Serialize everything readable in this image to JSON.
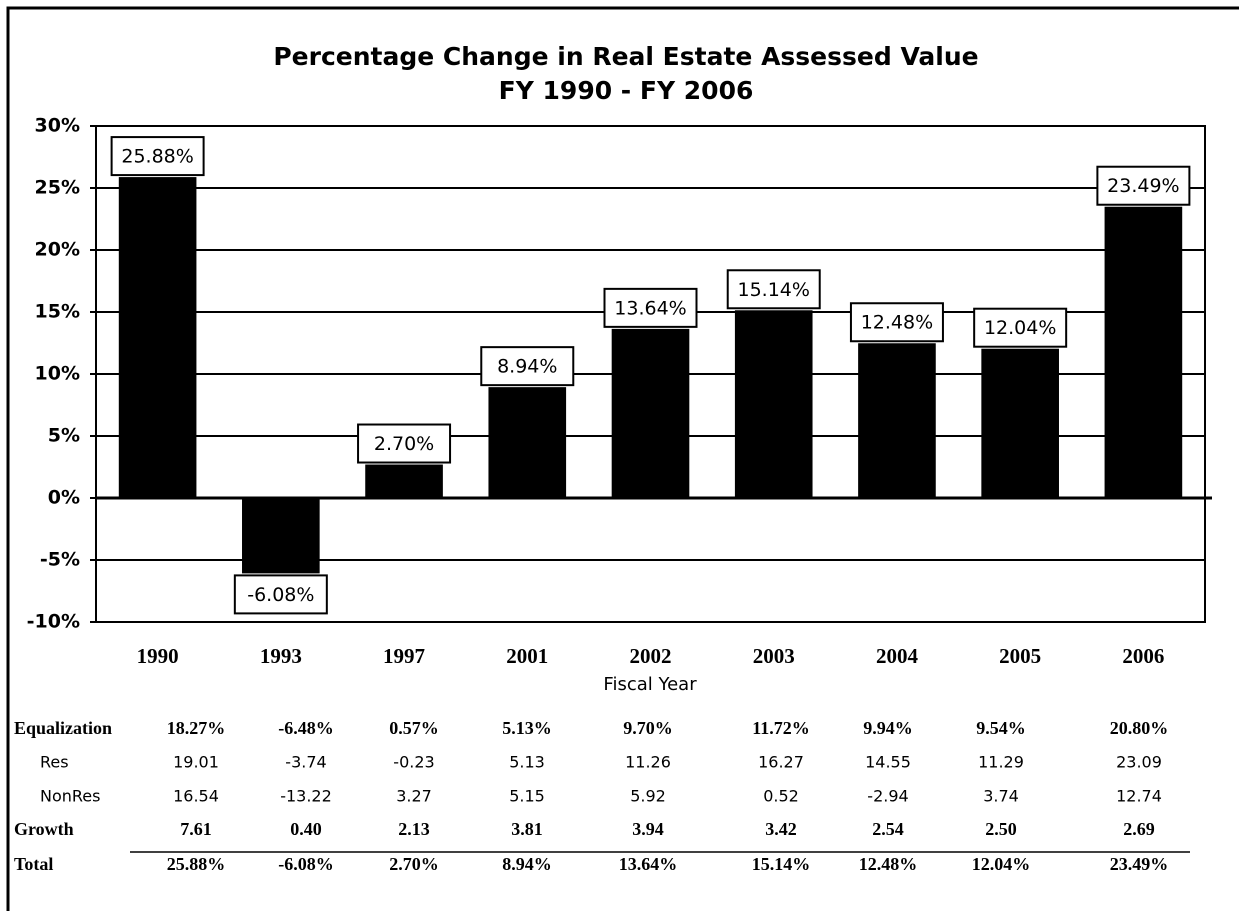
{
  "chart_data": {
    "type": "bar",
    "title": "Percentage Change in Real Estate Assessed Value",
    "subtitle": "FY 1990 - FY 2006",
    "x_label": "Fiscal Year",
    "categories": [
      "1990",
      "1993",
      "1997",
      "2001",
      "2002",
      "2003",
      "2004",
      "2005",
      "2006"
    ],
    "values": [
      25.88,
      -6.08,
      2.7,
      8.94,
      13.64,
      15.14,
      12.48,
      12.04,
      23.49
    ],
    "value_labels": [
      "25.88%",
      "-6.08%",
      "2.70%",
      "8.94%",
      "13.64%",
      "15.14%",
      "12.48%",
      "12.04%",
      "23.49%"
    ],
    "color": "#000000",
    "ylim": [
      -10,
      30
    ],
    "yticks": [
      {
        "value": -10,
        "label": "-10%"
      },
      {
        "value": -5,
        "label": "-5%"
      },
      {
        "value": 0,
        "label": "0%"
      },
      {
        "value": 5,
        "label": "5%"
      },
      {
        "value": 10,
        "label": "10%"
      },
      {
        "value": 15,
        "label": "15%"
      },
      {
        "value": 20,
        "label": "20%"
      },
      {
        "value": 25,
        "label": "25%"
      },
      {
        "value": 30,
        "label": "30%"
      }
    ],
    "grid": true
  },
  "table": {
    "rows": [
      {
        "label": "Equalization",
        "values": [
          "18.27%",
          "-6.48%",
          "0.57%",
          "5.13%",
          "9.70%",
          "11.72%",
          "9.94%",
          "9.54%",
          "20.80%"
        ]
      },
      {
        "label": "Res",
        "values": [
          "19.01",
          "-3.74",
          "-0.23",
          "5.13",
          "11.26",
          "16.27",
          "14.55",
          "11.29",
          "23.09"
        ]
      },
      {
        "label": "NonRes",
        "values": [
          "16.54",
          "-13.22",
          "3.27",
          "5.15",
          "5.92",
          "0.52",
          "-2.94",
          "3.74",
          "12.74"
        ]
      },
      {
        "label": "Growth",
        "values": [
          "7.61",
          "0.40",
          "2.13",
          "3.81",
          "3.94",
          "3.42",
          "2.54",
          "2.50",
          "2.69"
        ]
      },
      {
        "label": "Total",
        "values": [
          "25.88%",
          "-6.08%",
          "2.70%",
          "8.94%",
          "13.64%",
          "15.14%",
          "12.48%",
          "12.04%",
          "23.49%"
        ]
      }
    ]
  }
}
